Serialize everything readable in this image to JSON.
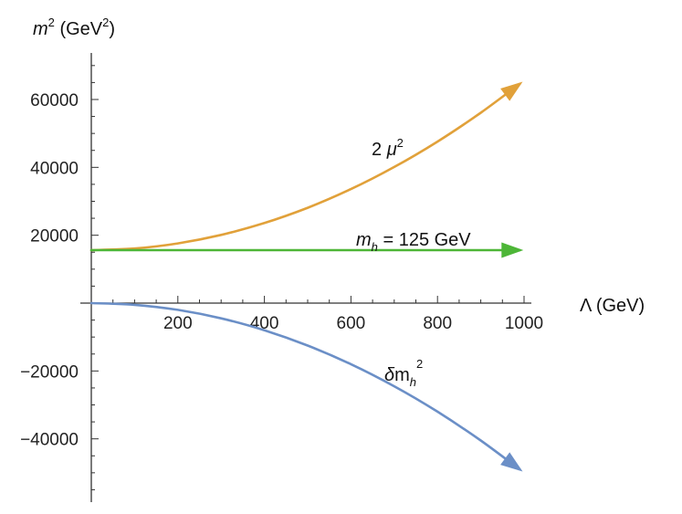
{
  "chart_data": {
    "type": "line",
    "xlabel": "Λ (GeV)",
    "ylabel_parts": {
      "m": "m",
      "sup1": "2",
      "unit": " (GeV",
      "sup2": "2",
      "close": ")"
    },
    "xlim": [
      0,
      1000
    ],
    "ylim": [
      -58000,
      72000
    ],
    "x_ticks": [
      200,
      400,
      600,
      800,
      1000
    ],
    "y_ticks": [
      60000,
      40000,
      20000,
      -20000,
      -40000
    ],
    "y_tick_labels": [
      "60000",
      "40000",
      "20000",
      "−20000",
      "−40000"
    ],
    "grid": false,
    "series": [
      {
        "label_parts": {
          "pre": "2 ",
          "sym": "μ",
          "sup": "2"
        },
        "color": "#e1a13a",
        "x": [
          0,
          100,
          200,
          300,
          400,
          500,
          600,
          700,
          800,
          900,
          990
        ],
        "y": [
          15600,
          16100,
          17600,
          20100,
          23600,
          28100,
          33600,
          40100,
          47600,
          56100,
          64600
        ]
      },
      {
        "label_parts": {
          "sym": "m",
          "sub": "h",
          "rest": " = 125 GeV"
        },
        "color": "#4db637",
        "x": [
          0,
          990
        ],
        "y": [
          15600,
          15600
        ]
      },
      {
        "label_parts": {
          "sym": "δ",
          "base": "m",
          "sub": "h",
          "sup": "2"
        },
        "color": "#6b8fc7",
        "x": [
          0,
          100,
          200,
          300,
          400,
          500,
          600,
          700,
          800,
          900,
          990
        ],
        "y": [
          0,
          -500,
          -2000,
          -4500,
          -8000,
          -12500,
          -18000,
          -24500,
          -32000,
          -40500,
          -49000
        ]
      }
    ]
  }
}
